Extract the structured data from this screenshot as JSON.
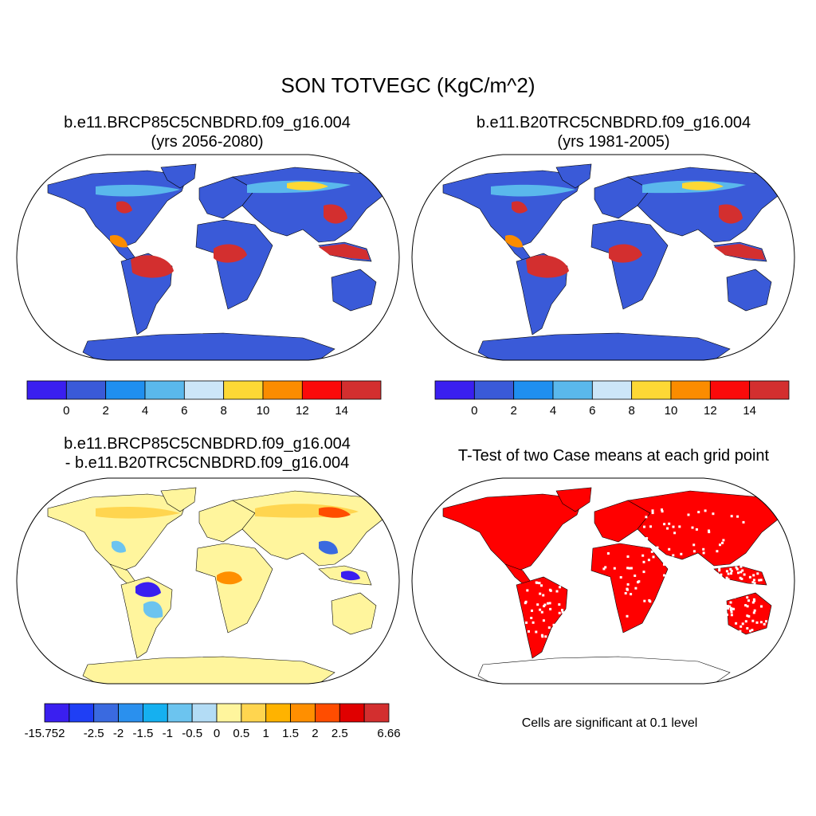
{
  "title": "SON TOTVEGC (KgC/m^2)",
  "panels": [
    {
      "title_line1": "b.e11.BRCP85C5CNBDRD.f09_g16.004",
      "title_line2": "(yrs 2056-2080)",
      "kind": "abs"
    },
    {
      "title_line1": "b.e11.B20TRC5CNBDRD.f09_g16.004",
      "title_line2": "(yrs 1981-2005)",
      "kind": "abs"
    },
    {
      "title_line1": "b.e11.BRCP85C5CNBDRD.f09_g16.004",
      "title_line2": "- b.e11.B20TRC5CNBDRD.f09_g16.004",
      "kind": "diff"
    },
    {
      "title_line1": "T-Test of two Case means at each grid point",
      "title_line2": "",
      "kind": "sig"
    }
  ],
  "colorbar_abs": {
    "colors": [
      "#3a1ff0",
      "#3a5ad8",
      "#1f8ff0",
      "#5ab8ec",
      "#cce6f8",
      "#fdd835",
      "#fb8c00",
      "#fb0a0a",
      "#d32f2f"
    ],
    "labels": [
      "0",
      "2",
      "4",
      "6",
      "8",
      "10",
      "12",
      "14"
    ]
  },
  "colorbar_diff": {
    "colors": [
      "#3a1ff0",
      "#1f3ff5",
      "#3a6ae0",
      "#2a90ee",
      "#15b0f0",
      "#6cc4ef",
      "#b3dcf5",
      "#fff59d",
      "#ffd54f",
      "#ffb300",
      "#ff8f00",
      "#ff4d00",
      "#e00000",
      "#d32f2f"
    ],
    "labels": [
      "-15.752",
      "-2.5",
      "-2",
      "-1.5",
      "-1",
      "-0.5",
      "0",
      "0.5",
      "1",
      "1.5",
      "2",
      "2.5",
      "6.66"
    ]
  },
  "significance_note": "Cells are significant at 0.1 level",
  "significance_color": "#ff0000"
}
